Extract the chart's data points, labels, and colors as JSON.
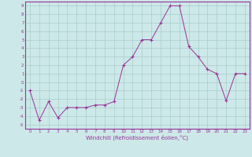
{
  "x": [
    0,
    1,
    2,
    3,
    4,
    5,
    6,
    7,
    8,
    9,
    10,
    11,
    12,
    13,
    14,
    15,
    16,
    17,
    18,
    19,
    20,
    21,
    22,
    23
  ],
  "y": [
    -1,
    -4.5,
    -2.3,
    -4.2,
    -3.0,
    -3.0,
    -3.0,
    -2.7,
    -2.7,
    -2.3,
    2.0,
    3.0,
    5.0,
    5.0,
    7.0,
    9.0,
    9.0,
    4.2,
    3.0,
    1.5,
    1.0,
    -2.2,
    1.0,
    1.0
  ],
  "xlabel": "Windchill (Refroidissement éolien,°C)",
  "xlim": [
    -0.5,
    23.5
  ],
  "ylim": [
    -5.5,
    9.5
  ],
  "yticks": [
    -5,
    -4,
    -3,
    -2,
    -1,
    0,
    1,
    2,
    3,
    4,
    5,
    6,
    7,
    8,
    9
  ],
  "xticks": [
    0,
    1,
    2,
    3,
    4,
    5,
    6,
    7,
    8,
    9,
    10,
    11,
    12,
    13,
    14,
    15,
    16,
    17,
    18,
    19,
    20,
    21,
    22,
    23
  ],
  "line_color": "#993399",
  "marker": "+",
  "bg_color": "#cce8e8",
  "grid_color": "#aacccc",
  "spine_color": "#993399",
  "label_color": "#993399",
  "tick_fontsize": 4.0,
  "xlabel_fontsize": 5.0
}
